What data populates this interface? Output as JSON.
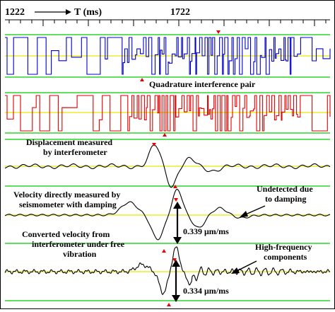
{
  "chart_data": {
    "type": "line",
    "x_axis": {
      "label": "T (ms)",
      "tick_labels": [
        "1222",
        "1722"
      ]
    },
    "series": [
      {
        "name": "Quadrature interference pair",
        "trace": "blue",
        "color": "#0000cc",
        "style": "square-wave"
      },
      {
        "name": "Quadrature interference pair",
        "trace": "red",
        "color": "#e00000",
        "style": "square-wave"
      },
      {
        "name": "Displacement measured by interferometer",
        "trace": "displacement",
        "color": "#000000",
        "style": "waveform"
      },
      {
        "name": "Velocity directly measured by seismometer with damping",
        "trace": "velocity",
        "color": "#000000",
        "style": "waveform"
      },
      {
        "name": "Converted velocity from interferometer under free vibration",
        "trace": "converted",
        "color": "#000000",
        "style": "waveform"
      }
    ],
    "annotations": {
      "quadrature": "Quadrature interference pair",
      "displacement_l1": "Displacement measured",
      "displacement_l2": "by interferometer",
      "velocity_l1": "Velocity directly measured by",
      "velocity_l2": "seismometer with damping",
      "converted_l1": "Converted velocity from",
      "converted_l2": "interferometer under free",
      "converted_l3": "vibration",
      "undetected_l1": "Undetected due",
      "undetected_l2": "to damping",
      "highfreq_l1": "High-frequency",
      "highfreq_l2": "components",
      "amp1": "0.339 μm/ms",
      "amp2": "0.334 μm/ms"
    },
    "reference_line_colors": {
      "green": "#00cc00",
      "yellow": "#e6e600"
    },
    "marker_color": "#ee0000",
    "grid": false
  }
}
